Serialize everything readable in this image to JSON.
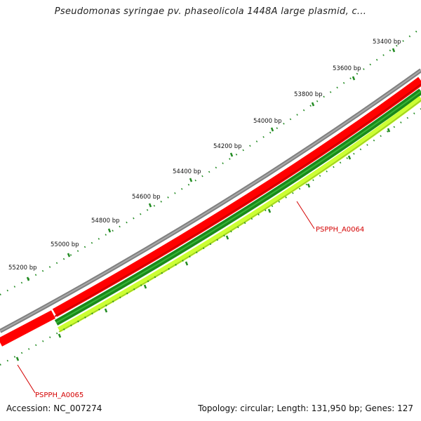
{
  "title": "Pseudomonas syringae pv. phaseolicola 1448A large plasmid, c...",
  "footer": {
    "accession": "Accession: NC_007274",
    "summary": "Topology: circular; Length: 131,950 bp; Genes: 127"
  },
  "ticks": [
    "53400 bp",
    "53600 bp",
    "53800 bp",
    "54000 bp",
    "54200 bp",
    "54400 bp",
    "54600 bp",
    "54800 bp",
    "55000 bp",
    "55200 bp"
  ],
  "genes": [
    {
      "label": "PSPPH_A0064"
    },
    {
      "label": "PSPPH_A0065"
    }
  ],
  "colors": {
    "backbone": "#808080",
    "cds": "#ff0000",
    "gene_dark": "#1a8a1a",
    "gene_light": "#ccff33",
    "ticks": "#228b22",
    "gene_label": "#d40000"
  }
}
